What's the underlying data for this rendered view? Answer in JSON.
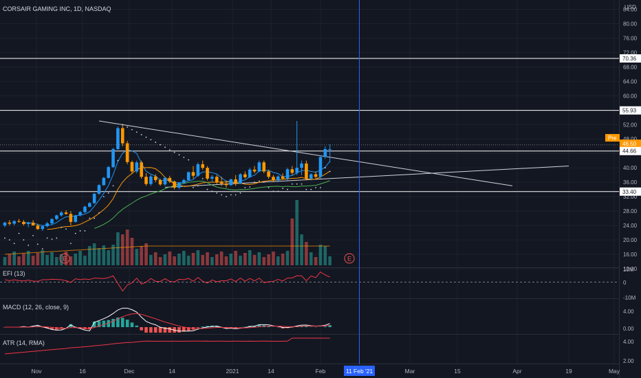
{
  "header": {
    "title": "CORSAIR GAMING INC, 1D, NASDAQ"
  },
  "price_axis": {
    "currency": "USD",
    "ticks": [
      "84.00",
      "80.00",
      "76.00",
      "72.00",
      "68.00",
      "64.00",
      "60.00",
      "56.00",
      "52.00",
      "48.00",
      "40.00",
      "36.00",
      "32.00",
      "28.00",
      "24.00",
      "20.00",
      "16.00",
      "12.00"
    ],
    "labels": [
      {
        "text": "70.36",
        "kind": "level"
      },
      {
        "text": "55.93",
        "kind": "level"
      },
      {
        "text": "46.50",
        "kind": "pre"
      },
      {
        "text": "45.23",
        "kind": "price"
      },
      {
        "text": "44.66",
        "kind": "level"
      },
      {
        "text": "33.40",
        "kind": "level"
      }
    ],
    "pre_label": "Pre"
  },
  "panes": {
    "efi": {
      "title": "EFI (13)",
      "ticks": [
        "10M",
        "0",
        "-10M"
      ]
    },
    "macd": {
      "title": "MACD (12, 26, close, 9)",
      "ticks": [
        "4.00",
        "0.00"
      ]
    },
    "atr": {
      "title": "ATR (14, RMA)",
      "ticks": [
        "4.00",
        "2.00"
      ]
    }
  },
  "time_axis": {
    "labels": [
      "Nov",
      "16",
      "Dec",
      "14",
      "2021",
      "14",
      "Feb",
      "Mar",
      "15",
      "Apr",
      "19",
      "May"
    ],
    "crosshair_label": "11 Feb '21"
  },
  "markers": {
    "earnings": "E"
  },
  "colors": {
    "background": "#131722",
    "up": "#2196f3",
    "down": "#ff9800",
    "vol_up": "#26a69a",
    "vol_down": "#ef5350",
    "crosshair": "#2962ff",
    "level": "#ffffff",
    "efi": "#f23645",
    "macd": "#ffffff",
    "signal": "#f23645",
    "atr": "#f23645"
  },
  "chart_data": {
    "type": "candlestick",
    "title": "CORSAIR GAMING INC, 1D, NASDAQ",
    "y_range": [
      12,
      86
    ],
    "horizontal_levels": [
      70.36,
      55.93,
      44.66,
      33.4
    ],
    "last_price": 45.23,
    "premarket_price": 46.5,
    "candles": [
      [
        24.0,
        25.0,
        23.5,
        24.8
      ],
      [
        24.8,
        25.5,
        24.0,
        24.5
      ],
      [
        24.5,
        25.5,
        24.0,
        25.2
      ],
      [
        25.2,
        25.8,
        24.8,
        25.0
      ],
      [
        25.0,
        25.5,
        24.0,
        24.4
      ],
      [
        24.4,
        25.0,
        23.5,
        24.8
      ],
      [
        24.8,
        25.5,
        24.2,
        24.0
      ],
      [
        24.0,
        24.5,
        22.8,
        23.0
      ],
      [
        23.0,
        24.0,
        22.5,
        23.8
      ],
      [
        23.8,
        25.0,
        23.5,
        24.6
      ],
      [
        24.6,
        26.0,
        24.2,
        25.8
      ],
      [
        25.8,
        27.0,
        25.5,
        26.8
      ],
      [
        26.8,
        28.0,
        26.5,
        27.6
      ],
      [
        27.6,
        28.2,
        27.0,
        27.2
      ],
      [
        27.2,
        28.0,
        24.0,
        25.0
      ],
      [
        25.0,
        27.0,
        24.8,
        26.8
      ],
      [
        26.8,
        28.0,
        26.5,
        27.7
      ],
      [
        27.7,
        29.5,
        27.5,
        29.2
      ],
      [
        29.2,
        30.5,
        29.0,
        30.2
      ],
      [
        30.2,
        33.0,
        30.0,
        32.8
      ],
      [
        32.8,
        35.5,
        32.5,
        35.2
      ],
      [
        35.2,
        37.5,
        35.0,
        37.2
      ],
      [
        37.2,
        40.5,
        37.0,
        40.2
      ],
      [
        40.2,
        45.5,
        40.0,
        45.2
      ],
      [
        45.2,
        51.5,
        45.0,
        51.0
      ],
      [
        51.0,
        52.0,
        46.0,
        46.8
      ],
      [
        46.8,
        47.5,
        41.0,
        41.6
      ],
      [
        41.6,
        42.0,
        38.5,
        39.0
      ],
      [
        39.0,
        42.0,
        38.5,
        41.5
      ],
      [
        41.5,
        42.0,
        37.0,
        37.5
      ],
      [
        37.5,
        38.5,
        35.0,
        35.5
      ],
      [
        35.5,
        38.0,
        35.0,
        37.6
      ],
      [
        37.6,
        38.2,
        36.0,
        36.6
      ],
      [
        36.6,
        37.0,
        35.0,
        35.4
      ],
      [
        35.4,
        37.5,
        35.0,
        37.2
      ],
      [
        37.2,
        37.8,
        35.8,
        36.2
      ],
      [
        36.2,
        36.5,
        34.0,
        34.5
      ],
      [
        34.5,
        36.0,
        34.0,
        35.8
      ],
      [
        35.8,
        37.0,
        35.5,
        36.6
      ],
      [
        36.6,
        39.0,
        36.5,
        38.8
      ],
      [
        38.8,
        40.5,
        37.0,
        37.8
      ],
      [
        37.8,
        41.5,
        37.5,
        41.0
      ],
      [
        41.0,
        42.0,
        39.5,
        40.0
      ],
      [
        40.0,
        40.5,
        36.5,
        37.0
      ],
      [
        37.0,
        38.0,
        36.0,
        37.5
      ],
      [
        37.5,
        38.0,
        35.5,
        36.0
      ],
      [
        36.0,
        37.5,
        35.0,
        35.6
      ],
      [
        35.6,
        36.5,
        34.5,
        35.2
      ],
      [
        35.2,
        37.0,
        35.0,
        36.8
      ],
      [
        36.8,
        38.0,
        35.0,
        35.6
      ],
      [
        35.6,
        38.5,
        35.5,
        38.2
      ],
      [
        38.2,
        39.0,
        37.0,
        37.4
      ],
      [
        37.4,
        40.0,
        37.2,
        39.5
      ],
      [
        39.5,
        40.5,
        38.5,
        39.0
      ],
      [
        39.0,
        42.0,
        38.8,
        41.5
      ],
      [
        41.5,
        42.0,
        38.5,
        39.0
      ],
      [
        39.0,
        39.5,
        37.0,
        37.5
      ],
      [
        37.5,
        38.0,
        36.0,
        36.5
      ],
      [
        36.5,
        38.0,
        36.0,
        37.6
      ],
      [
        37.6,
        38.5,
        36.8,
        37.0
      ],
      [
        37.0,
        40.0,
        36.5,
        39.6
      ],
      [
        39.6,
        40.5,
        38.0,
        38.6
      ],
      [
        38.6,
        53.0,
        38.0,
        40.0
      ],
      [
        40.0,
        42.0,
        38.0,
        41.2
      ],
      [
        41.2,
        42.0,
        36.5,
        37.0
      ],
      [
        37.0,
        38.5,
        36.5,
        38.2
      ],
      [
        38.2,
        39.0,
        37.0,
        37.5
      ],
      [
        37.5,
        43.5,
        37.0,
        43.0
      ],
      [
        43.0,
        46.0,
        42.5,
        45.2
      ],
      [
        45.2,
        46.5,
        41.5,
        45.2
      ]
    ],
    "x_labels": [
      "Nov",
      "16",
      "Dec",
      "14",
      "2021",
      "14",
      "Feb",
      "Mar",
      "15",
      "Apr",
      "19",
      "May"
    ],
    "crosshair_date": "11 Feb '21"
  }
}
